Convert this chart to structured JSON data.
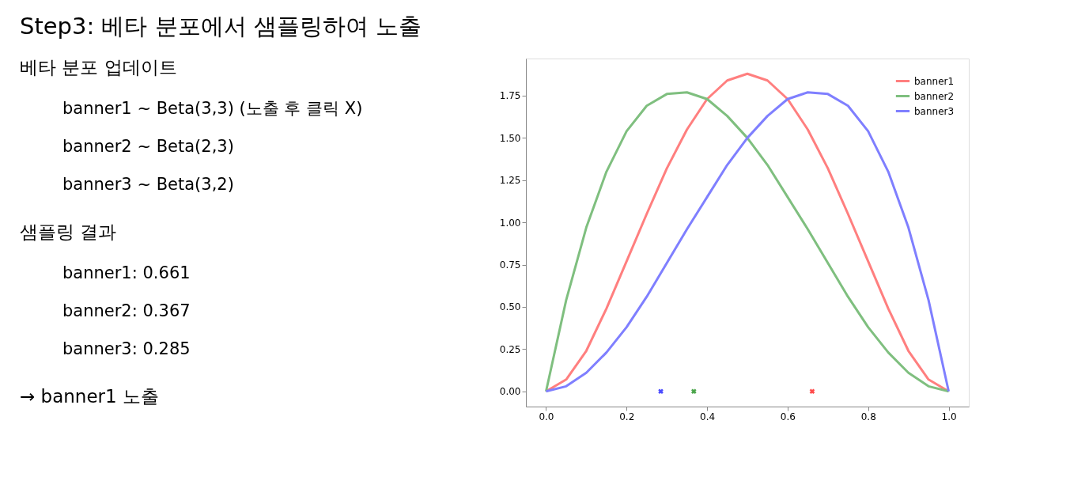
{
  "chart_data": {
    "type": "line",
    "title": "Step3: 베타 분포에서 샘플링하여 노출",
    "annotations": [
      "베타 분포 업데이트",
      "banner1 ~ Beta(3,3) (노출 후 클릭 X)",
      "banner2 ~ Beta(2,3)",
      "banner3 ~ Beta(3,2)",
      "샘플링 결과",
      "banner1: 0.661",
      "banner2: 0.367",
      "banner3: 0.285",
      "→ banner1 노출"
    ],
    "x": [
      0,
      0.05,
      0.1,
      0.15,
      0.2,
      0.25,
      0.3,
      0.35,
      0.4,
      0.45,
      0.5,
      0.55,
      0.6,
      0.65,
      0.7,
      0.75,
      0.8,
      0.85,
      0.9,
      0.95,
      1
    ],
    "series": [
      {
        "name": "banner1",
        "color": "#ff7f7f",
        "values": [
          0,
          0.07,
          0.24,
          0.49,
          0.77,
          1.05,
          1.32,
          1.55,
          1.73,
          1.84,
          1.88,
          1.84,
          1.73,
          1.55,
          1.32,
          1.05,
          0.77,
          0.49,
          0.24,
          0.07,
          0
        ]
      },
      {
        "name": "banner2",
        "color": "#7fbf7f",
        "values": [
          0,
          0.54,
          0.97,
          1.3,
          1.54,
          1.69,
          1.76,
          1.77,
          1.73,
          1.63,
          1.5,
          1.34,
          1.15,
          0.96,
          0.76,
          0.56,
          0.38,
          0.23,
          0.11,
          0.03,
          0
        ]
      },
      {
        "name": "banner3",
        "color": "#7f7fff",
        "values": [
          0,
          0.03,
          0.11,
          0.23,
          0.38,
          0.56,
          0.76,
          0.96,
          1.15,
          1.34,
          1.5,
          1.63,
          1.73,
          1.77,
          1.76,
          1.69,
          1.54,
          1.3,
          0.97,
          0.54,
          0
        ]
      },
      {
        "type": "scatter",
        "marker": "cross",
        "color": "#0000ff",
        "x": [
          0.285
        ],
        "values": [
          0
        ]
      },
      {
        "type": "scatter",
        "marker": "cross",
        "color": "#008000",
        "x": [
          0.367
        ],
        "values": [
          0
        ]
      },
      {
        "type": "scatter",
        "marker": "cross",
        "color": "#ff0000",
        "x": [
          0.661
        ],
        "values": [
          0
        ]
      }
    ],
    "xlim": [
      -0.05,
      1.05
    ],
    "xticks": [
      {
        "value": 0,
        "label": "0.0"
      },
      {
        "value": 0.2,
        "label": "0.2"
      },
      {
        "value": 0.4,
        "label": "0.4"
      },
      {
        "value": 0.6,
        "label": "0.6"
      },
      {
        "value": 0.8,
        "label": "0.8"
      },
      {
        "value": 1,
        "label": "1.0"
      }
    ],
    "ylim": [
      -0.09,
      1.97
    ],
    "yticks": [
      {
        "value": 0,
        "label": "0.00"
      },
      {
        "value": 0.25,
        "label": "0.25"
      },
      {
        "value": 0.5,
        "label": "0.50"
      },
      {
        "value": 0.75,
        "label": "0.75"
      },
      {
        "value": 1,
        "label": "1.00"
      },
      {
        "value": 1.25,
        "label": "1.25"
      },
      {
        "value": 1.5,
        "label": "1.50"
      },
      {
        "value": 1.75,
        "label": "1.75"
      }
    ],
    "legend": "top right",
    "grid": false,
    "line_style": "solid"
  }
}
